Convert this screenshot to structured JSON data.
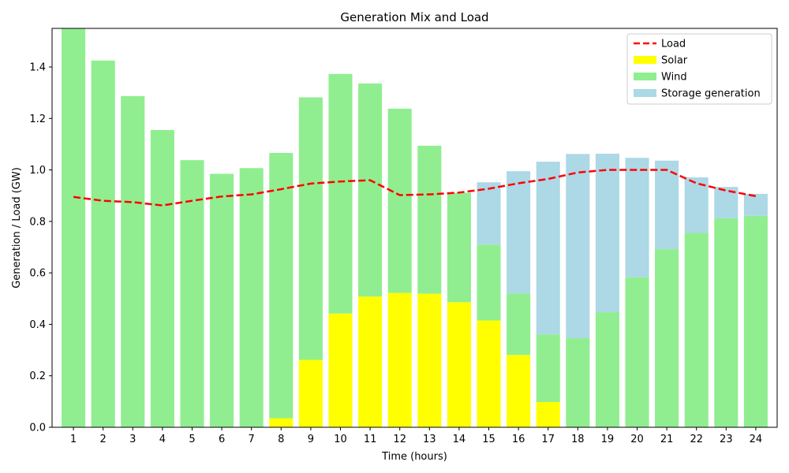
{
  "chart_data": {
    "type": "bar",
    "title": "Generation Mix and Load",
    "xlabel": "Time (hours)",
    "ylabel": "Generation / Load (GW)",
    "categories": [
      "1",
      "2",
      "3",
      "4",
      "5",
      "6",
      "7",
      "8",
      "9",
      "10",
      "11",
      "12",
      "13",
      "14",
      "15",
      "16",
      "17",
      "18",
      "19",
      "20",
      "21",
      "22",
      "23",
      "24"
    ],
    "ylim": [
      0,
      1.55
    ],
    "yticks": [
      0.0,
      0.2,
      0.4,
      0.6,
      0.8,
      1.0,
      1.2,
      1.4
    ],
    "ytick_labels": [
      "0.0",
      "0.2",
      "0.4",
      "0.6",
      "0.8",
      "1.0",
      "1.2",
      "1.4"
    ],
    "stacked": true,
    "grid": false,
    "legend_position": "top-right",
    "series": [
      {
        "name": "Solar",
        "kind": "bar",
        "color": "#ffff00",
        "values": [
          0,
          0,
          0,
          0,
          0,
          0,
          0,
          0.035,
          0.262,
          0.442,
          0.508,
          0.522,
          0.519,
          0.486,
          0.415,
          0.281,
          0.098,
          0,
          0,
          0,
          0,
          0,
          0,
          0
        ]
      },
      {
        "name": "Wind",
        "kind": "bar",
        "color": "#90ee90",
        "values": [
          1.55,
          1.425,
          1.287,
          1.155,
          1.038,
          0.985,
          1.007,
          1.031,
          1.02,
          0.931,
          0.828,
          0.716,
          0.575,
          0.425,
          0.295,
          0.239,
          0.263,
          0.346,
          0.447,
          0.583,
          0.692,
          0.755,
          0.812,
          0.822
        ]
      },
      {
        "name": "Storage generation",
        "kind": "bar",
        "color": "#add8e6",
        "values": [
          0,
          0,
          0,
          0,
          0,
          0,
          0,
          0,
          0,
          0,
          0,
          0,
          0,
          0,
          0.242,
          0.475,
          0.671,
          0.716,
          0.616,
          0.464,
          0.344,
          0.216,
          0.122,
          0.085
        ]
      },
      {
        "name": "Load",
        "kind": "line",
        "style": "dashed",
        "color": "#ff0000",
        "values": [
          0.895,
          0.88,
          0.875,
          0.862,
          0.88,
          0.897,
          0.905,
          0.925,
          0.947,
          0.955,
          0.96,
          0.902,
          0.905,
          0.912,
          0.927,
          0.948,
          0.965,
          0.99,
          1.0,
          1.0,
          1.0,
          0.948,
          0.92,
          0.898
        ]
      }
    ],
    "legend_order": [
      "Load",
      "Solar",
      "Wind",
      "Storage generation"
    ]
  }
}
